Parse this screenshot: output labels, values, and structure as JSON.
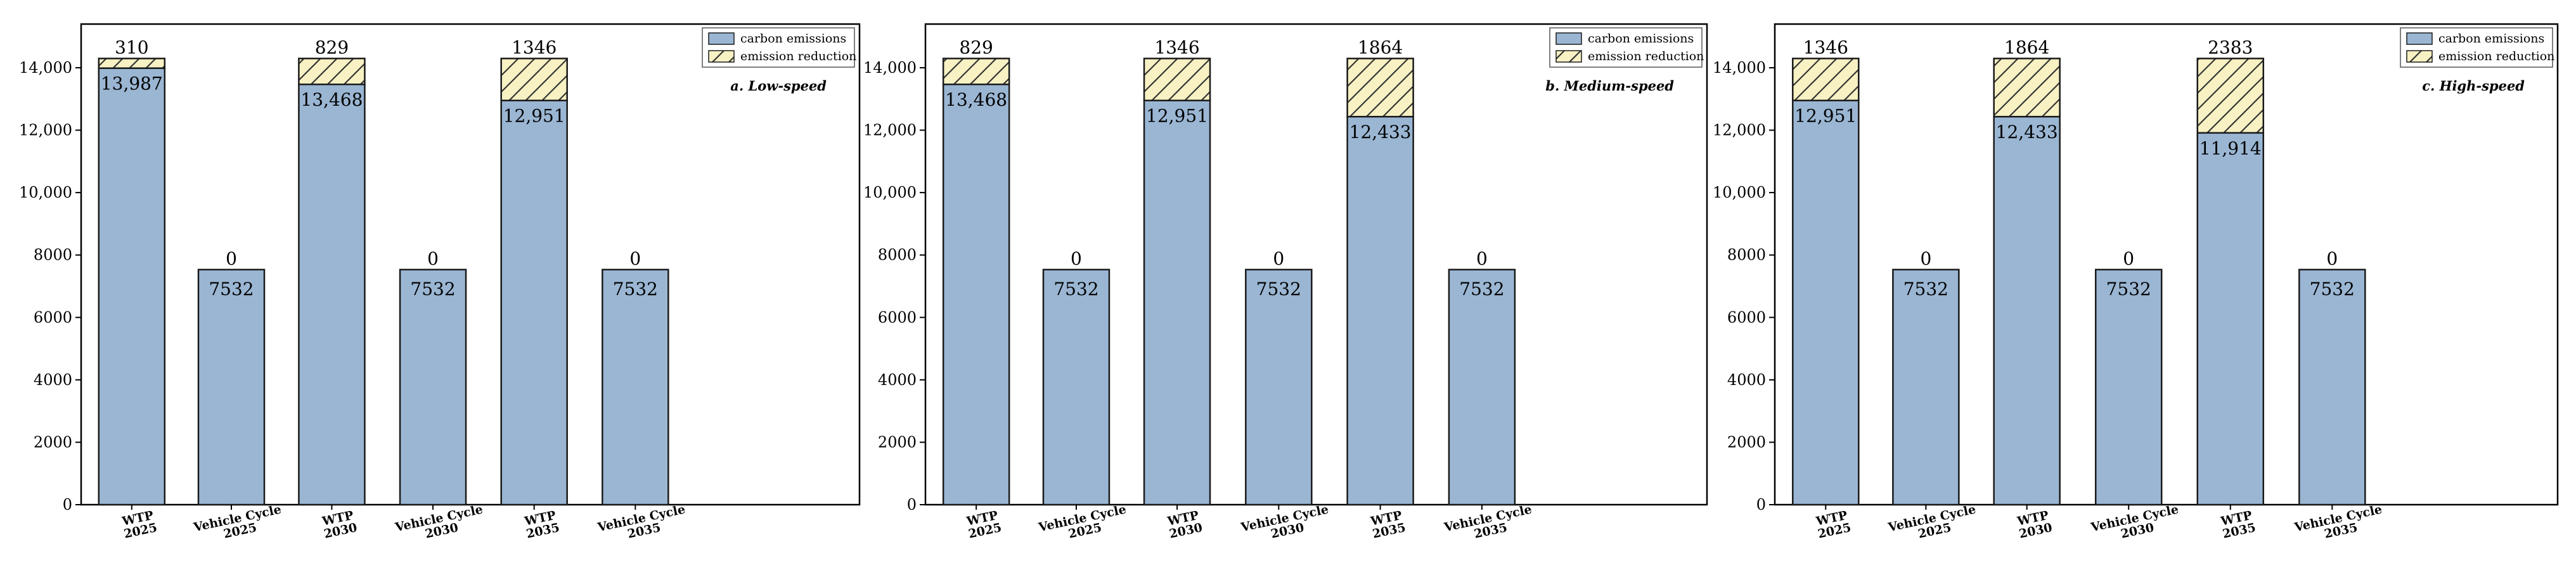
{
  "colors": {
    "emissions_fill": "#9ab6d3",
    "reduction_fill": "#f7f1c3",
    "hatch_stroke": "#333333",
    "axis": "#000000"
  },
  "chart_data": [
    {
      "type": "bar",
      "stacked": true,
      "subtitle": "a. Low-speed",
      "categories": [
        [
          "WTP",
          "2025"
        ],
        [
          "Vehicle Cycle",
          "2025"
        ],
        [
          "WTP",
          "2030"
        ],
        [
          "Vehicle Cycle",
          "2030"
        ],
        [
          "WTP",
          "2035"
        ],
        [
          "Vehicle Cycle",
          "2035"
        ]
      ],
      "series": [
        {
          "name": "carbon emissions",
          "values": [
            13987,
            7532,
            13468,
            7532,
            12951,
            7532
          ],
          "labels": [
            "13,987",
            "7532",
            "13,468",
            "7532",
            "12,951",
            "7532"
          ]
        },
        {
          "name": "emission reduction",
          "values": [
            310,
            0,
            829,
            0,
            1346,
            0
          ],
          "labels": [
            "310",
            "0",
            "829",
            "0",
            "1346",
            "0"
          ]
        }
      ],
      "yticks": [
        "0",
        "2000",
        "4000",
        "6000",
        "8000",
        "10,000",
        "12,000",
        "14,000"
      ],
      "ylim": [
        0,
        15400
      ],
      "legend": "top-right",
      "grid": false
    },
    {
      "type": "bar",
      "stacked": true,
      "subtitle": "b. Medium-speed",
      "categories": [
        [
          "WTP",
          "2025"
        ],
        [
          "Vehicle Cycle",
          "2025"
        ],
        [
          "WTP",
          "2030"
        ],
        [
          "Vehicle Cycle",
          "2030"
        ],
        [
          "WTP",
          "2035"
        ],
        [
          "Vehicle Cycle",
          "2035"
        ]
      ],
      "series": [
        {
          "name": "carbon emissions",
          "values": [
            13468,
            7532,
            12951,
            7532,
            12433,
            7532
          ],
          "labels": [
            "13,468",
            "7532",
            "12,951",
            "7532",
            "12,433",
            "7532"
          ]
        },
        {
          "name": "emission reduction",
          "values": [
            829,
            0,
            1346,
            0,
            1864,
            0
          ],
          "labels": [
            "829",
            "0",
            "1346",
            "0",
            "1864",
            "0"
          ]
        }
      ],
      "yticks": [
        "0",
        "2000",
        "4000",
        "6000",
        "8000",
        "10,000",
        "12,000",
        "14,000"
      ],
      "ylim": [
        0,
        15400
      ],
      "legend": "top-right",
      "grid": false
    },
    {
      "type": "bar",
      "stacked": true,
      "subtitle": "c. High-speed",
      "categories": [
        [
          "WTP",
          "2025"
        ],
        [
          "Vehicle Cycle",
          "2025"
        ],
        [
          "WTP",
          "2030"
        ],
        [
          "Vehicle Cycle",
          "2030"
        ],
        [
          "WTP",
          "2035"
        ],
        [
          "Vehicle Cycle",
          "2035"
        ]
      ],
      "series": [
        {
          "name": "carbon emissions",
          "values": [
            12951,
            7532,
            12433,
            7532,
            11914,
            7532
          ],
          "labels": [
            "12,951",
            "7532",
            "12,433",
            "7532",
            "11,914",
            "7532"
          ]
        },
        {
          "name": "emission reduction",
          "values": [
            1346,
            0,
            1864,
            0,
            2383,
            0
          ],
          "labels": [
            "1346",
            "0",
            "1864",
            "0",
            "2383",
            "0"
          ]
        }
      ],
      "yticks": [
        "0",
        "2000",
        "4000",
        "6000",
        "8000",
        "10,000",
        "12,000",
        "14,000"
      ],
      "ylim": [
        0,
        15400
      ],
      "legend": "top-right",
      "grid": false
    }
  ]
}
